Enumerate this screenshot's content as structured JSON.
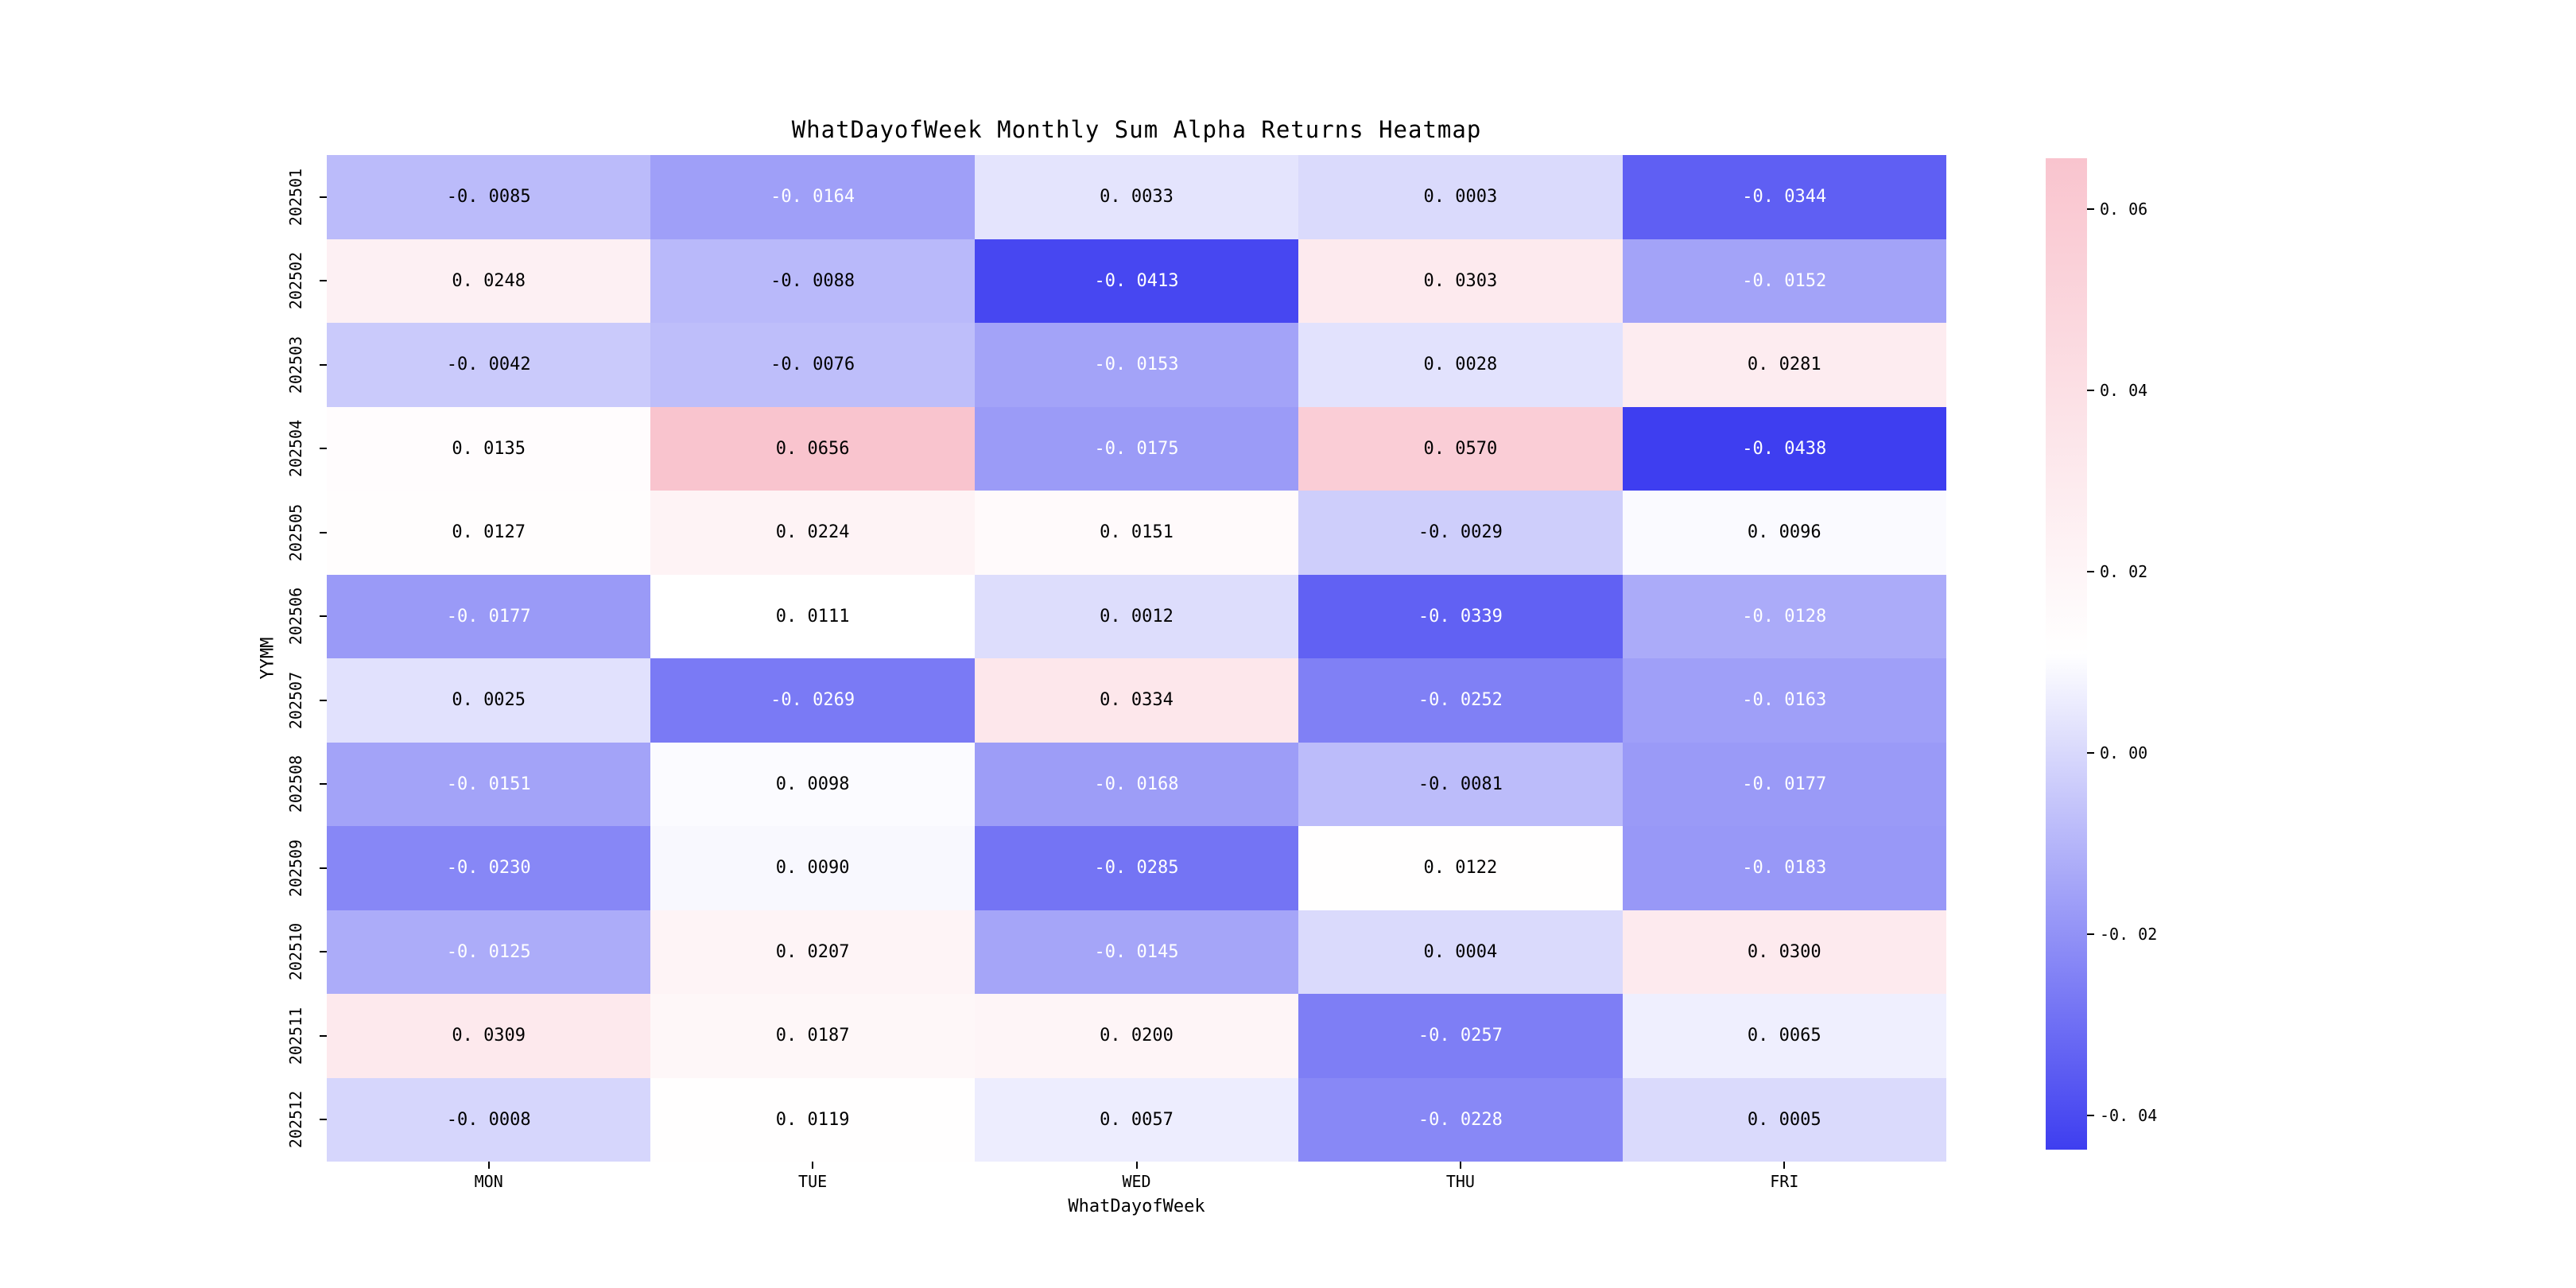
{
  "page": {
    "background": "#ffffff"
  },
  "chart_data": {
    "type": "heatmap",
    "title": "WhatDayofWeek Monthly Sum Alpha Returns Heatmap",
    "xlabel": "WhatDayofWeek",
    "ylabel": "YYMM",
    "columns": [
      "MON",
      "TUE",
      "WED",
      "THU",
      "FRI"
    ],
    "rows": [
      "202501",
      "202502",
      "202503",
      "202504",
      "202505",
      "202506",
      "202507",
      "202508",
      "202509",
      "202510",
      "202511",
      "202512"
    ],
    "values": [
      [
        -0.0085,
        -0.0164,
        0.0033,
        0.0003,
        -0.0344
      ],
      [
        0.0248,
        -0.0088,
        -0.0413,
        0.0303,
        -0.0152
      ],
      [
        -0.0042,
        -0.0076,
        -0.0153,
        0.0028,
        0.0281
      ],
      [
        0.0135,
        0.0656,
        -0.0175,
        0.057,
        -0.0438
      ],
      [
        0.0127,
        0.0224,
        0.0151,
        -0.0029,
        0.0096
      ],
      [
        -0.0177,
        0.0111,
        0.0012,
        -0.0339,
        -0.0128
      ],
      [
        0.0025,
        -0.0269,
        0.0334,
        -0.0252,
        -0.0163
      ],
      [
        -0.0151,
        0.0098,
        -0.0168,
        -0.0081,
        -0.0177
      ],
      [
        -0.023,
        0.009,
        -0.0285,
        0.0122,
        -0.0183
      ],
      [
        -0.0125,
        0.0207,
        -0.0145,
        0.0004,
        0.03
      ],
      [
        0.0309,
        0.0187,
        0.02,
        -0.0257,
        0.0065
      ],
      [
        -0.0008,
        0.0119,
        0.0057,
        -0.0228,
        0.0005
      ]
    ],
    "vmin": -0.0438,
    "vmax": 0.0656,
    "value_decimals": 4,
    "colormap": {
      "negative_end": "#3e3ef0",
      "center": "#ffffff",
      "positive_end": "#f9c4ce"
    },
    "colorbar_ticks": [
      0.06,
      0.04,
      0.02,
      0.0,
      -0.02,
      -0.04
    ],
    "colorbar_tick_decimals": 2,
    "legend_position": "right",
    "grid": false
  }
}
